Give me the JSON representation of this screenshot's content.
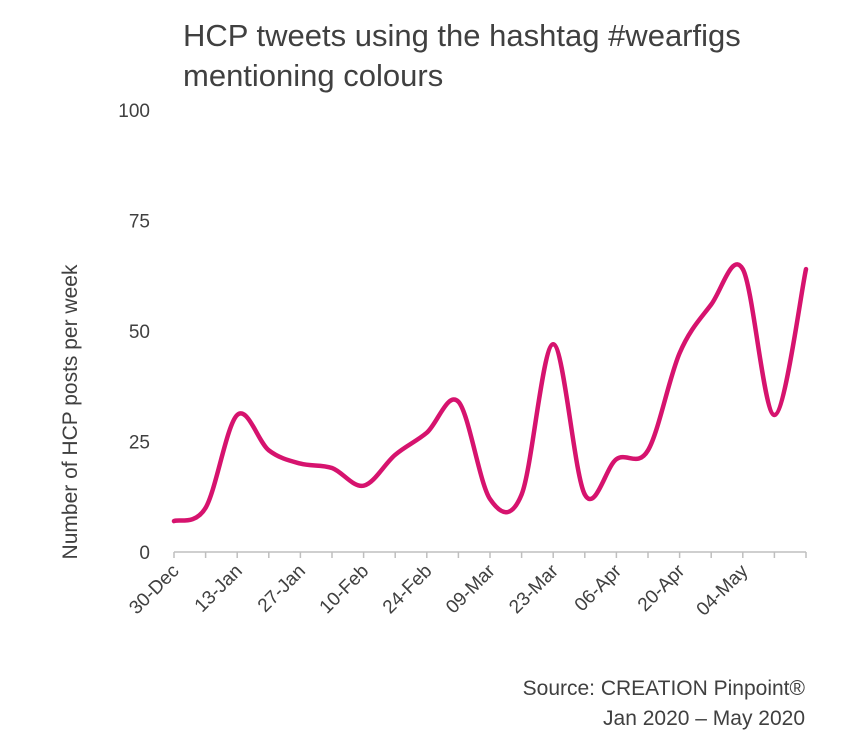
{
  "chart_data": {
    "type": "line",
    "title": "HCP tweets using the hashtag #wearfigs mentioning colours",
    "title_lines": [
      "HCP tweets using the hashtag #wearfigs",
      "mentioning colours"
    ],
    "xlabel": "",
    "ylabel": "Number of HCP posts per week",
    "ylim": [
      0,
      100
    ],
    "yticks": [
      0,
      25,
      50,
      75,
      100
    ],
    "grid": false,
    "legend": "none",
    "x_tick_labels": [
      "30-Dec",
      "13-Jan",
      "27-Jan",
      "10-Feb",
      "24-Feb",
      "09-Mar",
      "23-Mar",
      "06-Apr",
      "20-Apr",
      "04-May"
    ],
    "x": [
      "30-Dec",
      "06-Jan",
      "13-Jan",
      "20-Jan",
      "27-Jan",
      "03-Feb",
      "10-Feb",
      "17-Feb",
      "24-Feb",
      "02-Mar",
      "09-Mar",
      "16-Mar",
      "23-Mar",
      "30-Mar",
      "06-Apr",
      "13-Apr",
      "20-Apr",
      "27-Apr",
      "04-May",
      "11-May",
      "18-May"
    ],
    "series": [
      {
        "name": "",
        "color": "#d6136e",
        "values": [
          7,
          10,
          31,
          23,
          20,
          19,
          15,
          22,
          27,
          34,
          12,
          13,
          47,
          13,
          21,
          23,
          45,
          56,
          64,
          31,
          64
        ]
      }
    ],
    "source_lines": [
      "Source: CREATION Pinpoint®",
      "Jan 2020 – May 2020"
    ]
  }
}
